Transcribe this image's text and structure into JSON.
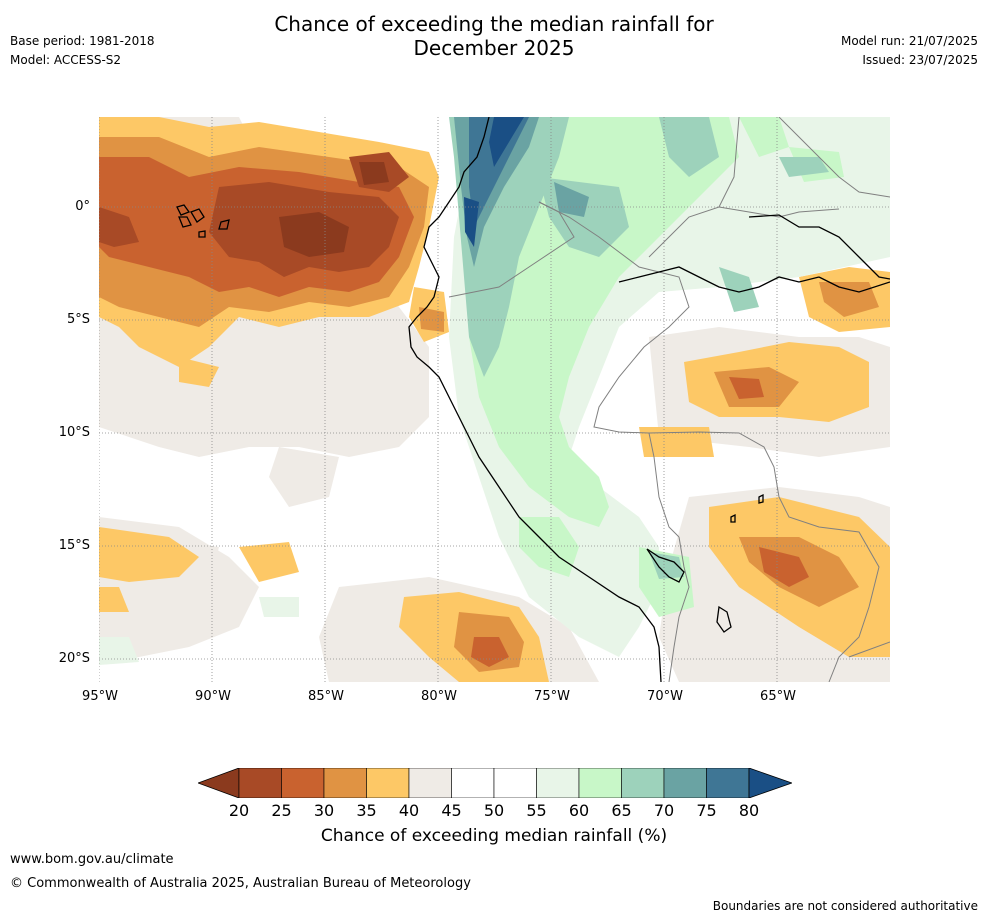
{
  "title_line1": "Chance of exceeding the median rainfall for",
  "title_line2": "December 2025",
  "meta": {
    "base_period": "Base period: 1981-2018",
    "model": "Model: ACCESS-S2",
    "model_run": "Model run: 21/07/2025",
    "issued": "Issued: 23/07/2025"
  },
  "map": {
    "lat_labels": [
      "0°",
      "5°S",
      "10°S",
      "15°S",
      "20°S"
    ],
    "lon_labels": [
      "95°W",
      "90°W",
      "85°W",
      "80°W",
      "75°W",
      "70°W",
      "65°W"
    ],
    "colors": {
      "ocean_bg": "#ffffff",
      "coast": "#000000",
      "border": "#808080",
      "grid": "#888888"
    }
  },
  "colorbar": {
    "title": "Chance of exceeding median rainfall (%)",
    "labels": [
      "20",
      "25",
      "30",
      "35",
      "40",
      "45",
      "50",
      "55",
      "60",
      "65",
      "70",
      "75",
      "80"
    ],
    "under_color": "#8b3a1e",
    "over_color": "#1a4f85",
    "bins": [
      "#a84a26",
      "#c9622f",
      "#e09343",
      "#fdc866",
      "#efebe6",
      "#ffffff",
      "#ffffff",
      "#e8f5e8",
      "#c8f7c8",
      "#9dd2bb",
      "#6aa3a3",
      "#3f7695"
    ]
  },
  "footer": {
    "url": "www.bom.gov.au/climate",
    "copyright": "© Commonwealth of Australia 2025, Australian Bureau of Meteorology",
    "disclaimer": "Boundaries are not considered authoritative"
  }
}
